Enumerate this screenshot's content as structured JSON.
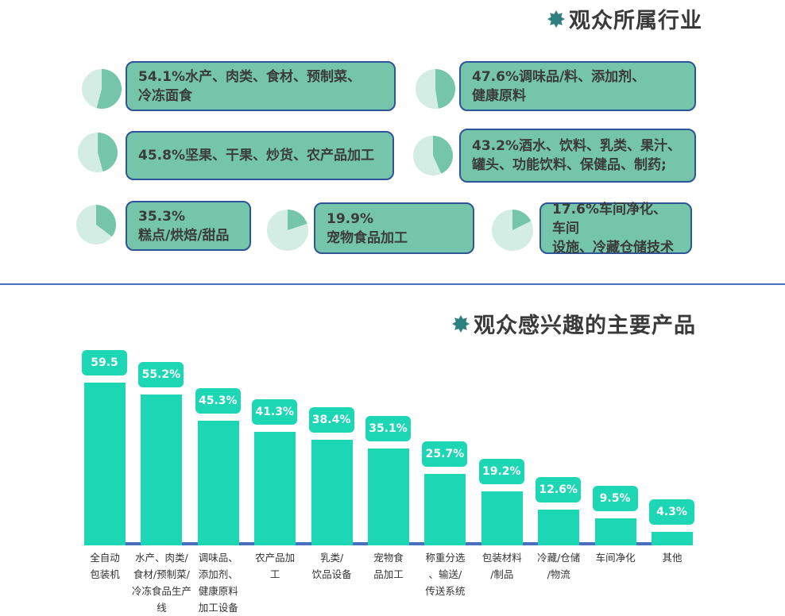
{
  "industry_section": {
    "title": "观众所属行业",
    "items": [
      {
        "percent": 54.1,
        "line1": "54.1%水产、肉类、食材、预制菜、",
        "line2": "冷冻面食"
      },
      {
        "percent": 47.6,
        "line1": "47.6%调味品/料、添加剂、",
        "line2": "健康原料"
      },
      {
        "percent": 45.8,
        "line1": "45.8%坚果、干果、炒货、农产品加工",
        "line2": ""
      },
      {
        "percent": 43.2,
        "line1": "43.2%酒水、饮料、乳类、果汁、",
        "line2": "罐头、功能饮料、保健品、制药;"
      },
      {
        "percent": 35.3,
        "line1": "35.3%",
        "line2": "糕点/烘焙/甜品"
      },
      {
        "percent": 19.9,
        "line1": "19.9%",
        "line2": "宠物食品加工"
      },
      {
        "percent": 17.6,
        "line1": "17.6%车间净化、车间",
        "line2": "设施、冷藏仓储技术"
      }
    ],
    "colors": {
      "slice": "#74c5aa",
      "rest": "#d3ede4",
      "box_border": "#2f5597",
      "icon": "#2e8080"
    }
  },
  "chart_data": {
    "type": "bar",
    "title": "观众感兴趣的主要产品",
    "categories": [
      "全自动\n包装机",
      "水产、肉类/\n食材/预制菜/\n冷冻食品生产\n线",
      "调味品、\n添加剂、\n健康原料\n加工设备",
      "农产品加\n工",
      "乳类/\n饮品设备",
      "宠物食\n品加工",
      "称重分选\n、输送/\n传送系统",
      "包装材料\n/制品",
      "冷藏/仓储\n/物流",
      "车间净化",
      "其他"
    ],
    "values": [
      59.5,
      55.2,
      45.3,
      41.3,
      38.4,
      35.1,
      25.7,
      19.2,
      12.6,
      9.5,
      4.3
    ],
    "data_labels": [
      "59.5",
      "55.2%",
      "45.3%",
      "41.3%",
      "38.4%",
      "35.1%",
      "25.7%",
      "19.2%",
      "12.6%",
      "9.5%",
      "4.3%"
    ],
    "ylim": [
      0,
      60
    ],
    "grid": false,
    "bar_color": "#1cd6b4",
    "axis_color": "#4a6fbf"
  }
}
